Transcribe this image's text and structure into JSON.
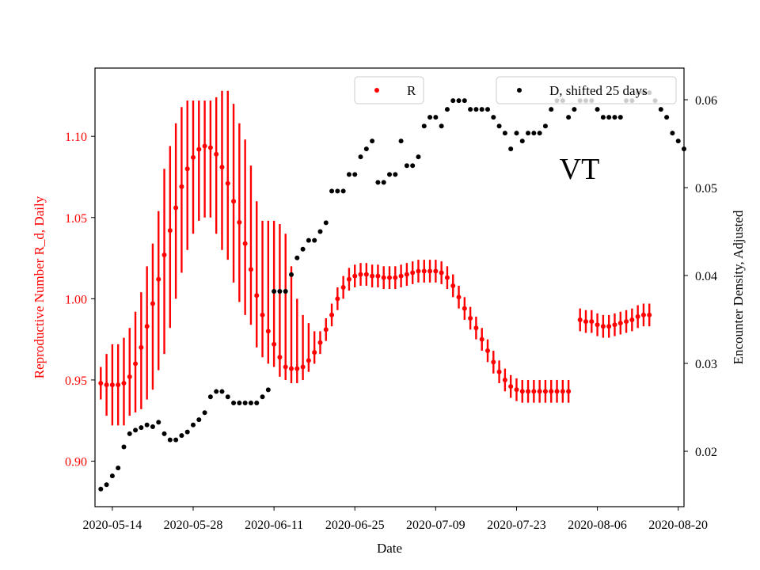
{
  "chart_data": {
    "type": "scatter",
    "title": "",
    "annotation": "VT",
    "xlabel": "Date",
    "ylabel_left": "Reproductive Number R_d, Daily",
    "ylabel_right": "Encounter Density, Adjusted",
    "x_start": "2020-05-12",
    "x_tick_labels": [
      "2020-05-14",
      "2020-05-28",
      "2020-06-11",
      "2020-06-25",
      "2020-07-09",
      "2020-07-23",
      "2020-08-06",
      "2020-08-20"
    ],
    "y_left_ticks": [
      "0.90",
      "0.95",
      "1.00",
      "1.05",
      "1.10"
    ],
    "y_right_ticks": [
      "0.02",
      "0.03",
      "0.04",
      "0.05",
      "0.06"
    ],
    "xlim": [
      "2020-05-11",
      "2020-08-21"
    ],
    "ylim_left": [
      0.872,
      1.142
    ],
    "ylim_right": [
      0.0137,
      0.0636
    ],
    "colors": {
      "R": "#ff0000",
      "D": "#000000"
    },
    "legend_R": "R",
    "legend_D": "D, shifted 25 days",
    "R": [
      [
        0.948,
        0.938,
        0.958
      ],
      [
        0.947,
        0.928,
        0.966
      ],
      [
        0.947,
        0.922,
        0.972
      ],
      [
        0.947,
        0.922,
        0.972
      ],
      [
        0.948,
        0.922,
        0.976
      ],
      [
        0.952,
        0.928,
        0.982
      ],
      [
        0.96,
        0.93,
        0.992
      ],
      [
        0.97,
        0.932,
        1.004
      ],
      [
        0.983,
        0.938,
        1.02
      ],
      [
        0.997,
        0.944,
        1.034
      ],
      [
        1.012,
        0.956,
        1.054
      ],
      [
        1.027,
        0.966,
        1.08
      ],
      [
        1.042,
        0.982,
        1.094
      ],
      [
        1.056,
        1.0,
        1.108
      ],
      [
        1.069,
        1.016,
        1.118
      ],
      [
        1.08,
        1.03,
        1.122
      ],
      [
        1.087,
        1.04,
        1.122
      ],
      [
        1.092,
        1.048,
        1.122
      ],
      [
        1.094,
        1.05,
        1.122
      ],
      [
        1.093,
        1.05,
        1.122
      ],
      [
        1.089,
        1.04,
        1.124
      ],
      [
        1.081,
        1.03,
        1.128
      ],
      [
        1.071,
        1.024,
        1.128
      ],
      [
        1.06,
        1.01,
        1.12
      ],
      [
        1.047,
        0.998,
        1.108
      ],
      [
        1.034,
        0.99,
        1.098
      ],
      [
        1.018,
        0.984,
        1.082
      ],
      [
        1.002,
        0.97,
        1.06
      ],
      [
        0.99,
        0.964,
        1.048
      ],
      [
        0.98,
        0.96,
        1.048
      ],
      [
        0.972,
        0.958,
        1.048
      ],
      [
        0.964,
        0.952,
        1.046
      ],
      [
        0.958,
        0.95,
        1.04
      ],
      [
        0.957,
        0.948,
        1.02
      ],
      [
        0.957,
        0.948,
        1.0
      ],
      [
        0.958,
        0.95,
        0.99
      ],
      [
        0.962,
        0.955,
        0.985
      ],
      [
        0.967,
        0.96,
        0.98
      ],
      [
        0.973,
        0.966,
        0.98
      ],
      [
        0.981,
        0.974,
        0.988
      ],
      [
        0.99,
        0.983,
        0.997
      ],
      [
        1.0,
        0.993,
        1.007
      ],
      [
        1.007,
        1.0,
        1.014
      ],
      [
        1.012,
        1.005,
        1.019
      ],
      [
        1.014,
        1.007,
        1.021
      ],
      [
        1.015,
        1.008,
        1.022
      ],
      [
        1.015,
        1.008,
        1.022
      ],
      [
        1.014,
        1.007,
        1.021
      ],
      [
        1.014,
        1.007,
        1.021
      ],
      [
        1.013,
        1.006,
        1.02
      ],
      [
        1.013,
        1.006,
        1.02
      ],
      [
        1.013,
        1.006,
        1.02
      ],
      [
        1.014,
        1.007,
        1.021
      ],
      [
        1.015,
        1.008,
        1.022
      ],
      [
        1.016,
        1.009,
        1.023
      ],
      [
        1.017,
        1.01,
        1.024
      ],
      [
        1.017,
        1.01,
        1.024
      ],
      [
        1.017,
        1.01,
        1.024
      ],
      [
        1.017,
        1.01,
        1.024
      ],
      [
        1.016,
        1.009,
        1.023
      ],
      [
        1.013,
        1.006,
        1.02
      ],
      [
        1.008,
        1.001,
        1.015
      ],
      [
        1.001,
        0.994,
        1.008
      ],
      [
        0.994,
        0.987,
        1.001
      ],
      [
        0.988,
        0.981,
        0.995
      ],
      [
        0.982,
        0.975,
        0.989
      ],
      [
        0.975,
        0.968,
        0.982
      ],
      [
        0.968,
        0.961,
        0.975
      ],
      [
        0.961,
        0.954,
        0.968
      ],
      [
        0.955,
        0.948,
        0.962
      ],
      [
        0.95,
        0.943,
        0.957
      ],
      [
        0.946,
        0.939,
        0.953
      ],
      [
        0.944,
        0.937,
        0.951
      ],
      [
        0.943,
        0.936,
        0.95
      ],
      [
        0.943,
        0.936,
        0.95
      ],
      [
        0.943,
        0.936,
        0.95
      ],
      [
        0.943,
        0.936,
        0.95
      ],
      [
        0.943,
        0.936,
        0.95
      ],
      [
        0.943,
        0.936,
        0.95
      ],
      [
        0.943,
        0.936,
        0.95
      ],
      [
        0.943,
        0.936,
        0.95
      ],
      [
        0.943,
        0.936,
        0.95
      ],
      null,
      [
        0.987,
        0.98,
        0.994
      ],
      [
        0.986,
        0.979,
        0.993
      ],
      [
        0.986,
        0.979,
        0.993
      ],
      [
        0.984,
        0.977,
        0.991
      ],
      [
        0.983,
        0.976,
        0.99
      ],
      [
        0.983,
        0.976,
        0.99
      ],
      [
        0.984,
        0.977,
        0.991
      ],
      [
        0.985,
        0.978,
        0.992
      ],
      [
        0.986,
        0.979,
        0.993
      ],
      [
        0.987,
        0.98,
        0.994
      ],
      [
        0.989,
        0.982,
        0.996
      ],
      [
        0.99,
        0.983,
        0.997
      ],
      [
        0.99,
        0.983,
        0.997
      ]
    ],
    "D": [
      0.0157,
      0.0162,
      0.0172,
      0.0181,
      0.0205,
      0.022,
      0.0224,
      0.0227,
      0.023,
      0.0228,
      0.0233,
      0.022,
      0.0213,
      0.0213,
      0.0218,
      0.0222,
      0.023,
      0.0236,
      0.0244,
      0.0262,
      0.0268,
      0.0268,
      0.0262,
      0.0255,
      0.0255,
      0.0255,
      0.0255,
      0.0255,
      0.0262,
      0.027,
      0.0382,
      0.0382,
      0.0382,
      0.0401,
      0.042,
      0.043,
      0.044,
      0.044,
      0.045,
      0.046,
      0.0496,
      0.0496,
      0.0496,
      0.0515,
      0.0515,
      0.0535,
      0.0544,
      0.0553,
      0.0506,
      0.0506,
      0.0515,
      0.0515,
      0.0553,
      0.0525,
      0.0525,
      0.0535,
      0.057,
      0.058,
      0.058,
      0.057,
      0.0589,
      0.0599,
      0.0599,
      0.0599,
      0.0589,
      0.0589,
      0.0589,
      0.0589,
      0.058,
      0.057,
      0.0562,
      0.0544,
      0.0562,
      0.0553,
      0.0562,
      0.0562,
      0.0562,
      0.057,
      0.0589,
      0.0599,
      0.0599,
      0.058,
      0.0589,
      0.0599,
      0.0599,
      0.0599,
      0.0589,
      0.058,
      0.058,
      0.058,
      0.058,
      0.0599,
      0.0599,
      0.0608,
      0.0608,
      0.0608,
      0.0599,
      0.0589,
      0.058,
      0.0562,
      0.0553,
      0.0544
    ]
  }
}
